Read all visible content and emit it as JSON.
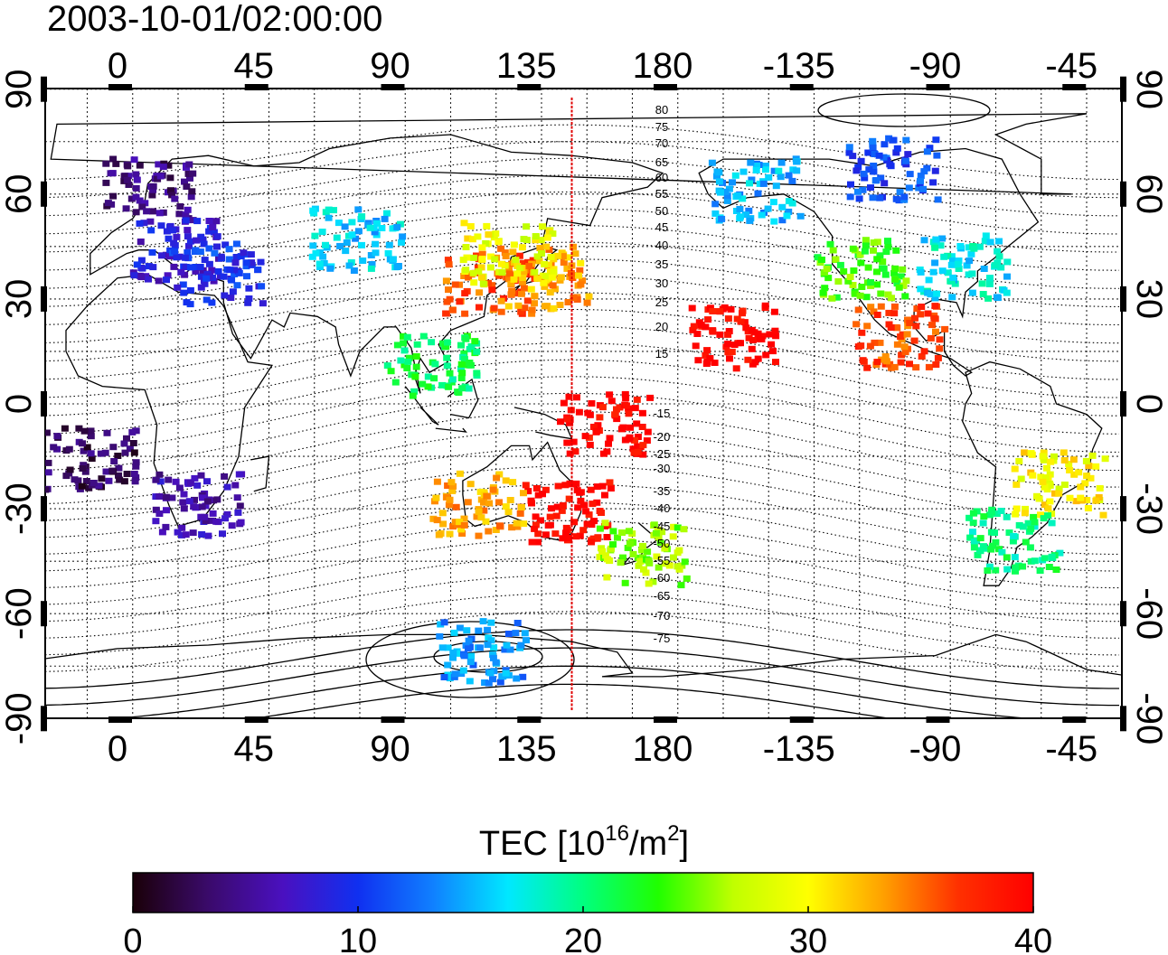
{
  "title": "2003-10-01/02:00:00",
  "top_lon_ticks": [
    "0",
    "45",
    "90",
    "135",
    "180",
    "-135",
    "-90",
    "-45"
  ],
  "bottom_lon_ticks": [
    "0",
    "45",
    "90",
    "135",
    "180",
    "-135",
    "-90",
    "-45"
  ],
  "lat_ticks": [
    "90",
    "60",
    "30",
    "0",
    "-30",
    "-60",
    "-90"
  ],
  "contour_labels": [
    "80",
    "75",
    "70",
    "65",
    "60",
    "55",
    "50",
    "45",
    "40",
    "35",
    "30",
    "25",
    "20",
    "15",
    "-15",
    "-20",
    "-25",
    "-30",
    "-35",
    "-40",
    "-45",
    "-50",
    "-55",
    "-60",
    "-65",
    "-70",
    "-75"
  ],
  "colorbar": {
    "label_main": "TEC  [10",
    "label_sup1": "16",
    "label_mid": "/m",
    "label_sup2": "2",
    "label_end": "]",
    "ticks": [
      "0",
      "10",
      "20",
      "30",
      "40"
    ],
    "min": 0,
    "max": 40,
    "colors": [
      "#1a0008",
      "#3a0a6a",
      "#4a10c0",
      "#1030f0",
      "#1080ff",
      "#00e8ff",
      "#00ff80",
      "#20ff00",
      "#c0ff00",
      "#ffff00",
      "#ffa000",
      "#ff3000",
      "#ff0000"
    ]
  },
  "terminator_lon": 150,
  "tec_clusters": [
    {
      "region": "europe-north",
      "lon": 10,
      "lat": 62,
      "value": 4
    },
    {
      "region": "europe-central",
      "lon": 18,
      "lat": 45,
      "value": 8
    },
    {
      "region": "europe-south",
      "lon": 32,
      "lat": 38,
      "value": 10
    },
    {
      "region": "central-asia",
      "lon": 78,
      "lat": 48,
      "value": 16
    },
    {
      "region": "east-china",
      "lon": 122,
      "lat": 35,
      "value": 36
    },
    {
      "region": "japan",
      "lon": 140,
      "lat": 37,
      "value": 33
    },
    {
      "region": "korea",
      "lon": 128,
      "lat": 44,
      "value": 29
    },
    {
      "region": "indochina",
      "lon": 103,
      "lat": 12,
      "value": 21
    },
    {
      "region": "pacific-tropics",
      "lon": 160,
      "lat": -5,
      "value": 40
    },
    {
      "region": "australia-east",
      "lon": 148,
      "lat": -30,
      "value": 40
    },
    {
      "region": "australia-west",
      "lon": 118,
      "lat": -28,
      "value": 33
    },
    {
      "region": "new-zealand",
      "lon": 172,
      "lat": -42,
      "value": 26
    },
    {
      "region": "alaska",
      "lon": -150,
      "lat": 62,
      "value": 15
    },
    {
      "region": "canada",
      "lon": -105,
      "lat": 68,
      "value": 11
    },
    {
      "region": "usa-west",
      "lon": -115,
      "lat": 40,
      "value": 24
    },
    {
      "region": "usa-east",
      "lon": -82,
      "lat": 40,
      "value": 17
    },
    {
      "region": "mexico",
      "lon": -103,
      "lat": 20,
      "value": 36
    },
    {
      "region": "hawaii",
      "lon": -157,
      "lat": 20,
      "value": 40
    },
    {
      "region": "south-america-east",
      "lon": -50,
      "lat": -22,
      "value": 30
    },
    {
      "region": "argentina",
      "lon": -65,
      "lat": -38,
      "value": 20
    },
    {
      "region": "south-africa",
      "lon": 25,
      "lat": -28,
      "value": 6
    },
    {
      "region": "west-africa",
      "lon": -10,
      "lat": -15,
      "value": 3
    },
    {
      "region": "antarctica",
      "lon": 120,
      "lat": -70,
      "value": 14
    }
  ]
}
